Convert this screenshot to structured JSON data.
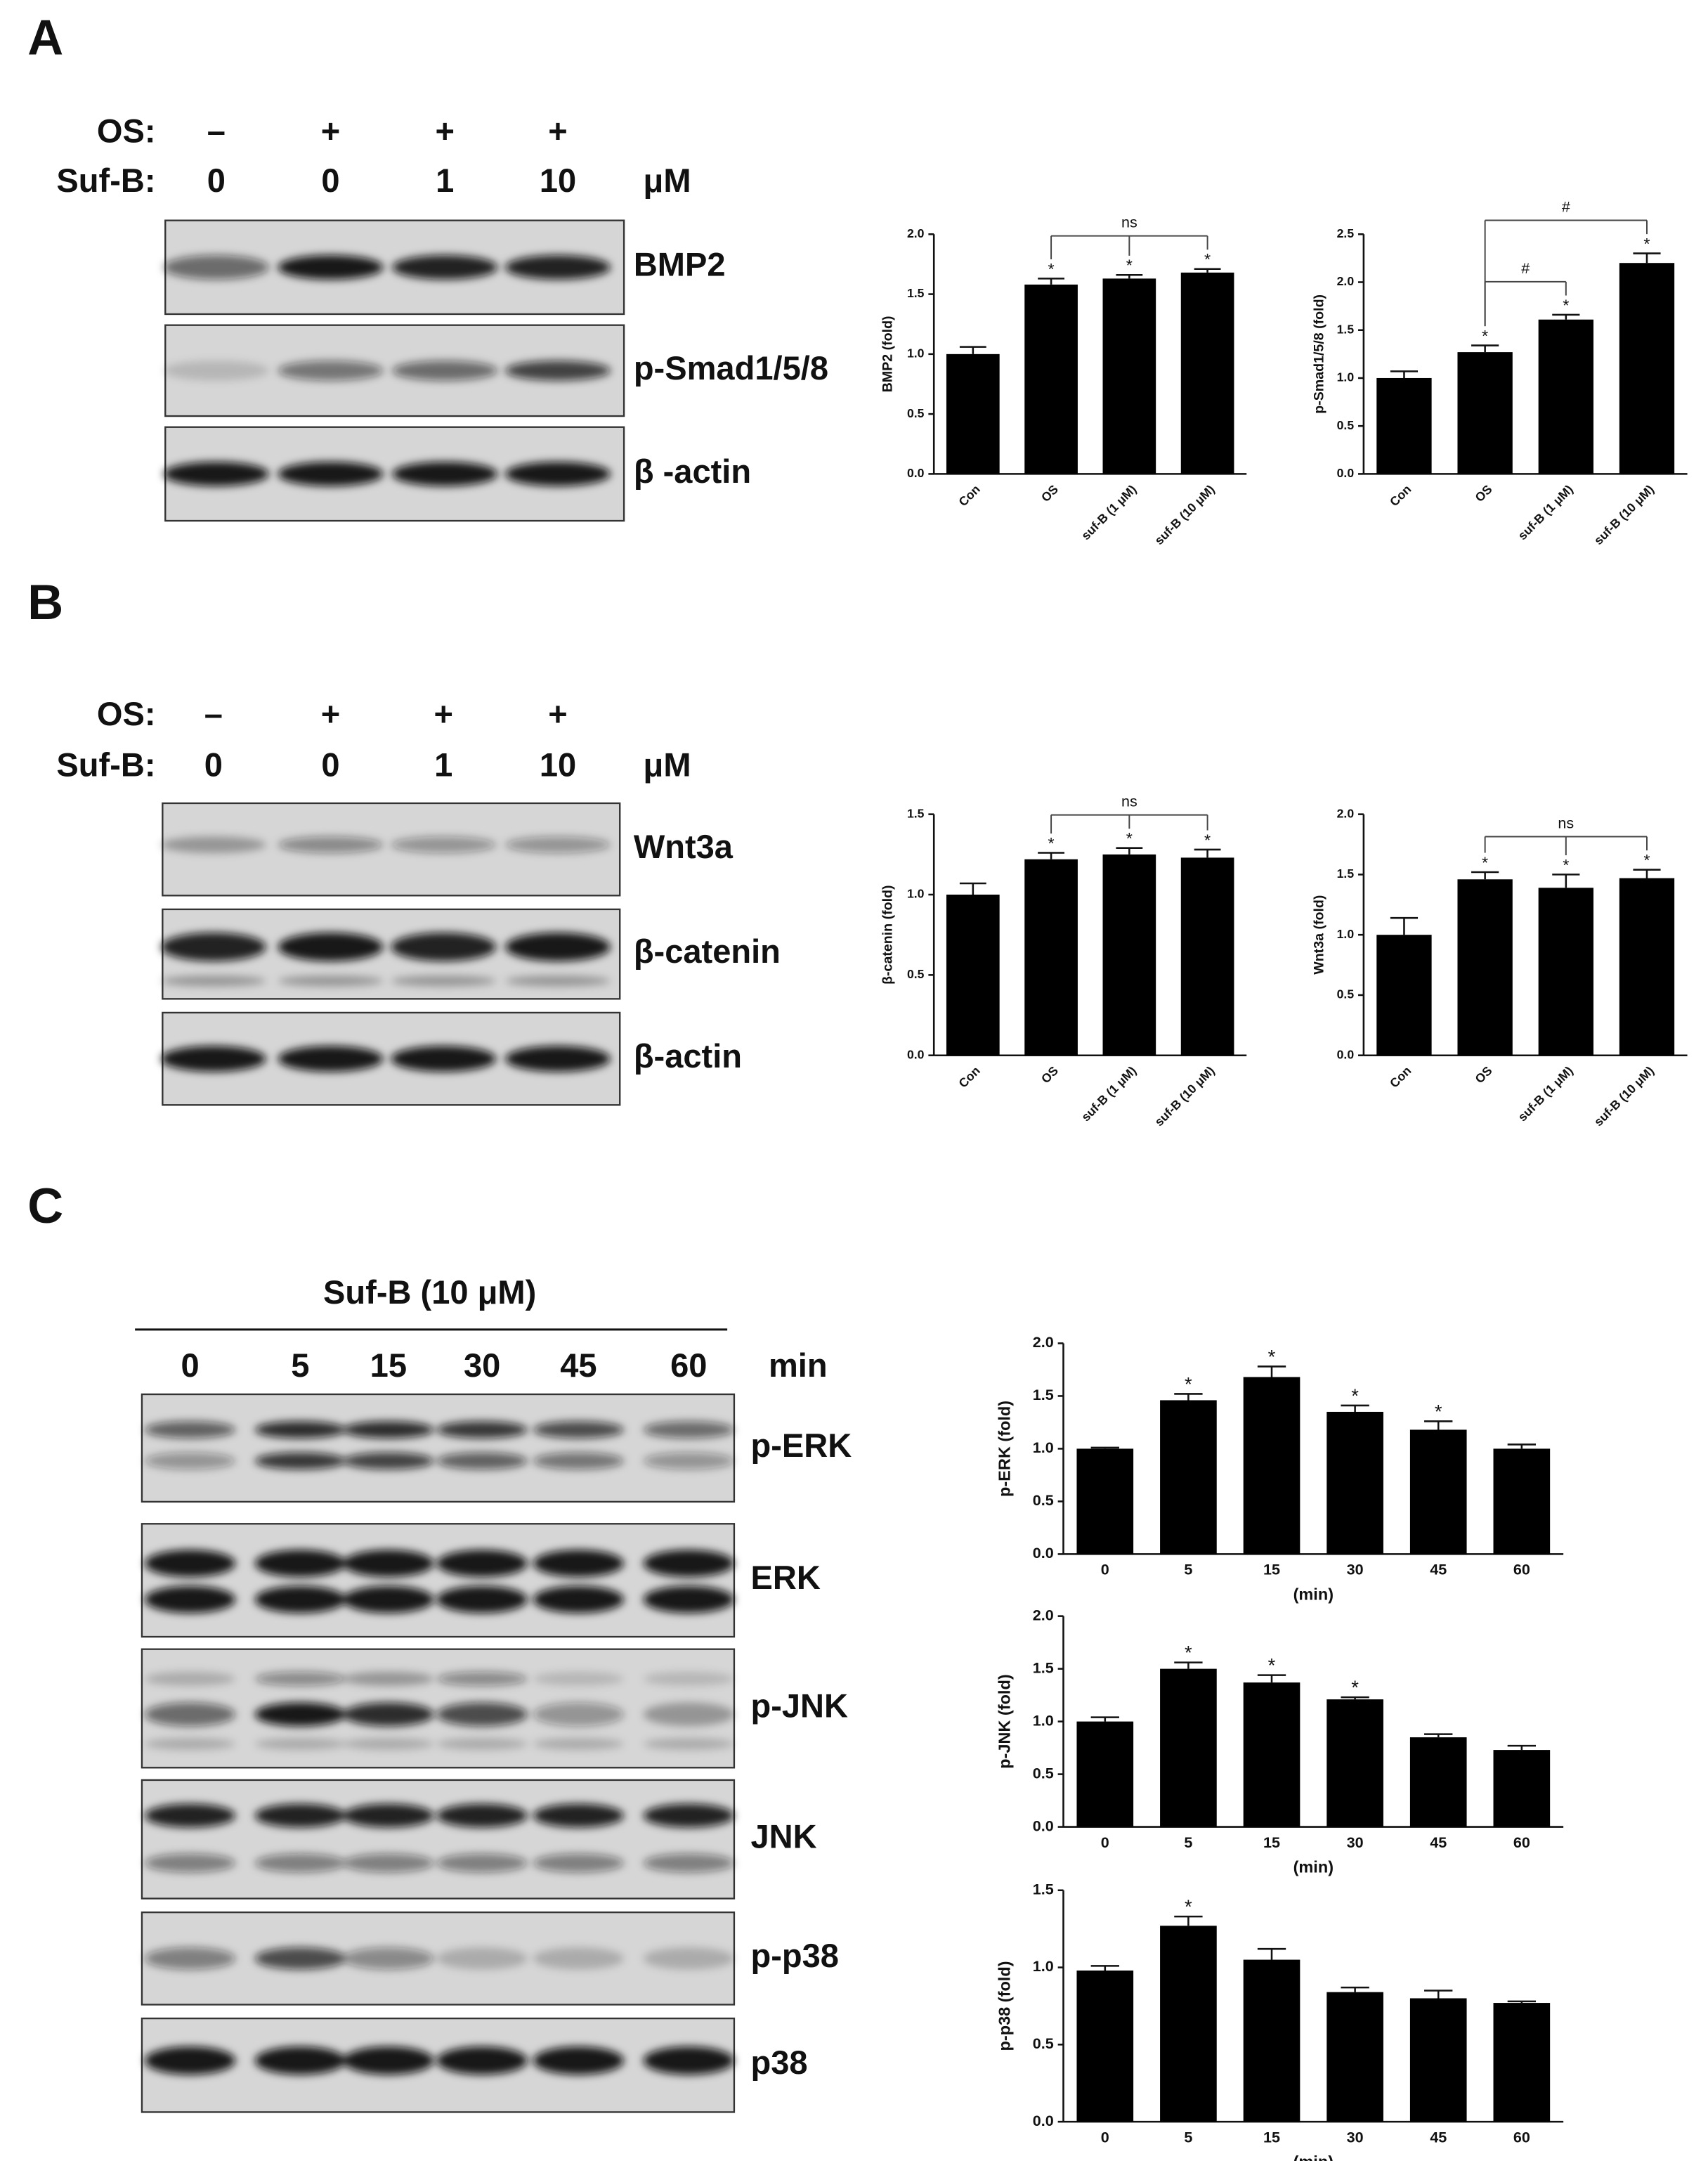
{
  "panels": [
    {
      "label": "A",
      "rows": [
        {
          "name": "OS:",
          "values": [
            "–",
            "+",
            "+",
            "+"
          ]
        },
        {
          "name": "Suf-B:",
          "values": [
            "0",
            "0",
            "1",
            "10"
          ],
          "unit": "μM"
        }
      ],
      "blots": [
        "BMP2",
        "p-Smad1/5/8",
        "β -actin"
      ]
    },
    {
      "label": "B",
      "rows": [
        {
          "name": "OS:",
          "values": [
            "–",
            "+",
            "+",
            "+"
          ]
        },
        {
          "name": "Suf-B:",
          "values": [
            "0",
            "0",
            "1",
            "10"
          ],
          "unit": "μM"
        }
      ],
      "blots": [
        "Wnt3a",
        "β-catenin",
        "β-actin"
      ]
    },
    {
      "label": "C",
      "treatment": "Suf-B (10 μM)",
      "rows": [
        {
          "values": [
            "0",
            "5",
            "15",
            "30",
            "45",
            "60"
          ],
          "unit": "min"
        }
      ],
      "blots": [
        "p-ERK",
        "ERK",
        "p-JNK",
        "JNK",
        "p-p38",
        "p38"
      ]
    }
  ],
  "chart_data": [
    {
      "type": "bar",
      "ylabel": "BMP2 (fold)",
      "color": "#000000",
      "categories": [
        "Con",
        "OS",
        "suf-B (1 μM)",
        "suf-B (10 μM)"
      ],
      "values": [
        1.0,
        1.58,
        1.63,
        1.68
      ],
      "errors": [
        0.06,
        0.05,
        0.03,
        0.03
      ],
      "significance": [
        null,
        "*",
        "*",
        "*"
      ],
      "brackets": [
        {
          "span": [
            1,
            2,
            3
          ],
          "label": "ns"
        }
      ],
      "ylim": [
        0,
        2
      ],
      "yticks": [
        {
          "value": 0,
          "label": "0.0"
        },
        {
          "value": 0.5,
          "label": "0.5"
        },
        {
          "value": 1,
          "label": "1.0"
        },
        {
          "value": 1.5,
          "label": "1.5"
        },
        {
          "value": 2,
          "label": "2.0"
        }
      ]
    },
    {
      "type": "bar",
      "ylabel": "p-Smad1/5/8 (fold)",
      "color": "#000000",
      "categories": [
        "Con",
        "OS",
        "suf-B (1 μM)",
        "suf-B (10 μM)"
      ],
      "values": [
        1.0,
        1.27,
        1.61,
        2.2
      ],
      "errors": [
        0.07,
        0.07,
        0.05,
        0.1
      ],
      "significance": [
        null,
        "*",
        "*",
        "*"
      ],
      "brackets": [
        {
          "span": [
            1,
            2
          ],
          "label": "#"
        },
        {
          "span": [
            1,
            3
          ],
          "label": "#"
        }
      ],
      "ylim": [
        0,
        2.5
      ],
      "yticks": [
        {
          "value": 0,
          "label": "0.0"
        },
        {
          "value": 0.5,
          "label": "0.5"
        },
        {
          "value": 1,
          "label": "1.0"
        },
        {
          "value": 1.5,
          "label": "1.5"
        },
        {
          "value": 2,
          "label": "2.0"
        },
        {
          "value": 2.5,
          "label": "2.5"
        }
      ]
    },
    {
      "type": "bar",
      "ylabel": "β-catenin (fold)",
      "color": "#000000",
      "categories": [
        "Con",
        "OS",
        "suf-B (1 μM)",
        "suf-B (10 μM)"
      ],
      "values": [
        1.0,
        1.22,
        1.25,
        1.23
      ],
      "errors": [
        0.07,
        0.04,
        0.04,
        0.05
      ],
      "significance": [
        null,
        "*",
        "*",
        "*"
      ],
      "brackets": [
        {
          "span": [
            1,
            2,
            3
          ],
          "label": "ns"
        }
      ],
      "ylim": [
        0,
        1.5
      ],
      "yticks": [
        {
          "value": 0,
          "label": "0.0"
        },
        {
          "value": 0.5,
          "label": "0.5"
        },
        {
          "value": 1,
          "label": "1.0"
        },
        {
          "value": 1.5,
          "label": "1.5"
        }
      ]
    },
    {
      "type": "bar",
      "ylabel": "Wnt3a (fold)",
      "color": "#000000",
      "categories": [
        "Con",
        "OS",
        "suf-B (1 μM)",
        "suf-B (10 μM)"
      ],
      "values": [
        1.0,
        1.46,
        1.39,
        1.47
      ],
      "errors": [
        0.14,
        0.06,
        0.11,
        0.07
      ],
      "significance": [
        null,
        "*",
        "*",
        "*"
      ],
      "brackets": [
        {
          "span": [
            1,
            2,
            3
          ],
          "label": "ns"
        }
      ],
      "ylim": [
        0,
        2
      ],
      "yticks": [
        {
          "value": 0,
          "label": "0.0"
        },
        {
          "value": 0.5,
          "label": "0.5"
        },
        {
          "value": 1,
          "label": "1.0"
        },
        {
          "value": 1.5,
          "label": "1.5"
        },
        {
          "value": 2,
          "label": "2.0"
        }
      ]
    },
    {
      "type": "bar",
      "ylabel": "p-ERK (fold)",
      "xlabel": "(min)",
      "color": "#000000",
      "categories": [
        "0",
        "5",
        "15",
        "30",
        "45",
        "60"
      ],
      "values": [
        1.0,
        1.46,
        1.68,
        1.35,
        1.18,
        1.0
      ],
      "errors": [
        0.01,
        0.06,
        0.1,
        0.06,
        0.08,
        0.04
      ],
      "significance": [
        null,
        "*",
        "*",
        "*",
        "*",
        null
      ],
      "ylim": [
        0,
        2
      ],
      "yticks": [
        {
          "value": 0,
          "label": "0.0"
        },
        {
          "value": 0.5,
          "label": "0.5"
        },
        {
          "value": 1,
          "label": "1.0"
        },
        {
          "value": 1.5,
          "label": "1.5"
        },
        {
          "value": 2,
          "label": "2.0"
        }
      ]
    },
    {
      "type": "bar",
      "ylabel": "p-JNK (fold)",
      "xlabel": "(min)",
      "color": "#000000",
      "categories": [
        "0",
        "5",
        "15",
        "30",
        "45",
        "60"
      ],
      "values": [
        1.0,
        1.5,
        1.37,
        1.21,
        0.85,
        0.73
      ],
      "errors": [
        0.04,
        0.06,
        0.07,
        0.02,
        0.03,
        0.04
      ],
      "significance": [
        null,
        "*",
        "*",
        "*",
        null,
        null
      ],
      "ylim": [
        0,
        2
      ],
      "yticks": [
        {
          "value": 0,
          "label": "0.0"
        },
        {
          "value": 0.5,
          "label": "0.5"
        },
        {
          "value": 1,
          "label": "1.0"
        },
        {
          "value": 1.5,
          "label": "1.5"
        },
        {
          "value": 2,
          "label": "2.0"
        }
      ]
    },
    {
      "type": "bar",
      "ylabel": "p-p38 (fold)",
      "xlabel": "(min)",
      "color": "#000000",
      "categories": [
        "0",
        "5",
        "15",
        "30",
        "45",
        "60"
      ],
      "values": [
        0.98,
        1.27,
        1.05,
        0.84,
        0.8,
        0.77
      ],
      "errors": [
        0.03,
        0.06,
        0.07,
        0.03,
        0.05,
        0.01
      ],
      "significance": [
        null,
        "*",
        null,
        null,
        null,
        null
      ],
      "ylim": [
        0,
        1.5
      ],
      "yticks": [
        {
          "value": 0,
          "label": "0.0"
        },
        {
          "value": 0.5,
          "label": "0.5"
        },
        {
          "value": 1,
          "label": "1.0"
        },
        {
          "value": 1.5,
          "label": "1.5"
        }
      ]
    }
  ]
}
